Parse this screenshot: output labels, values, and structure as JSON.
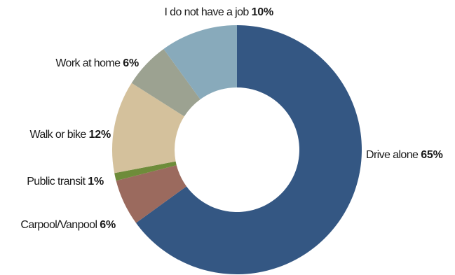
{
  "chart_data": {
    "type": "pie",
    "donut": true,
    "slices": [
      {
        "label": "Drive alone",
        "value": 65,
        "value_label": "65%",
        "color": "#345783"
      },
      {
        "label": "Carpool/Vanpool",
        "value": 6,
        "value_label": "6%",
        "color": "#9b6a5e"
      },
      {
        "label": "Public transit",
        "value": 1,
        "value_label": "1%",
        "color": "#6e8c3a"
      },
      {
        "label": "Walk or bike",
        "value": 12,
        "value_label": "12%",
        "color": "#d4c19c"
      },
      {
        "label": "Work at home",
        "value": 6,
        "value_label": "6%",
        "color": "#9ca291"
      },
      {
        "label": "I do not have a job",
        "value": 10,
        "value_label": "10%",
        "color": "#88aabb"
      }
    ],
    "start": "top",
    "direction": "clockwise",
    "legend": "none"
  }
}
